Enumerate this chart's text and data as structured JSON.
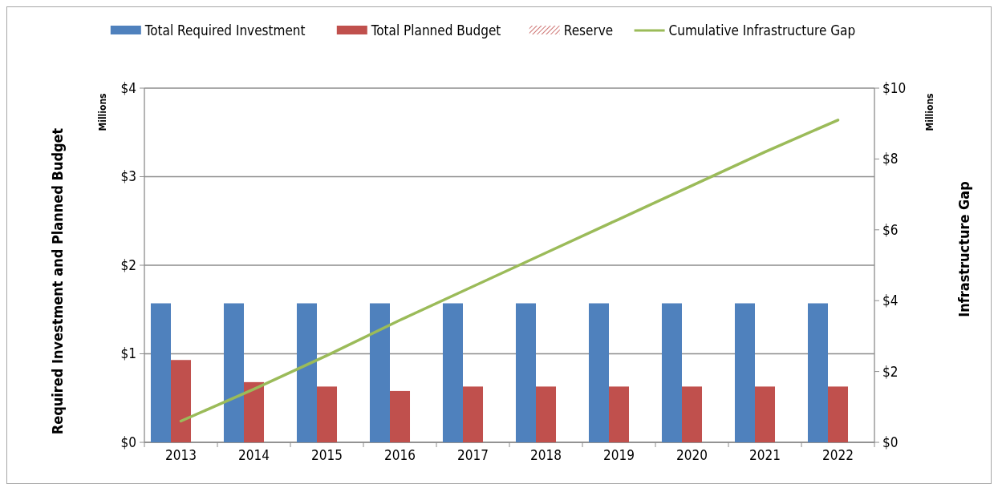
{
  "chart_data": {
    "type": "bar",
    "categories": [
      "2013",
      "2014",
      "2015",
      "2016",
      "2017",
      "2018",
      "2019",
      "2020",
      "2021",
      "2022"
    ],
    "series": [
      {
        "name": "Total Required Investment",
        "color": "#4f81bd",
        "values": [
          1.57,
          1.57,
          1.57,
          1.57,
          1.57,
          1.57,
          1.57,
          1.57,
          1.57,
          1.57
        ]
      },
      {
        "name": "Total Planned Budget",
        "color": "#c0504d",
        "values": [
          0.93,
          0.68,
          0.63,
          0.58,
          0.63,
          0.63,
          0.63,
          0.63,
          0.63,
          0.63
        ]
      },
      {
        "name": "Reserve",
        "color": "#c0504d",
        "values": [
          null,
          null,
          null,
          null,
          null,
          null,
          null,
          null,
          null,
          null
        ]
      },
      {
        "name": "Cumulative Infrastructure Gap",
        "type": "line",
        "axis": "y2",
        "color": "#9bbb59",
        "values": [
          0.6,
          1.5,
          2.45,
          3.45,
          4.4,
          5.35,
          6.3,
          7.25,
          8.2,
          9.1
        ]
      }
    ],
    "ylabel": "Required Investment and Planned Budget",
    "y2label": "Infrastructure Gap",
    "annotations": [
      "Millions",
      "Millions"
    ],
    "ylim": [
      0,
      4
    ],
    "yticks": [
      {
        "value": 0,
        "label": "$0"
      },
      {
        "value": 1,
        "label": "$1"
      },
      {
        "value": 2,
        "label": "$2"
      },
      {
        "value": 3,
        "label": "$3"
      },
      {
        "value": 4,
        "label": "$4"
      }
    ],
    "y2lim": [
      0,
      10
    ],
    "y2ticks": [
      {
        "value": 0,
        "label": "$0"
      },
      {
        "value": 2,
        "label": "$2"
      },
      {
        "value": 4,
        "label": "$4"
      },
      {
        "value": 6,
        "label": "$6"
      },
      {
        "value": 8,
        "label": "$8"
      },
      {
        "value": 10,
        "label": "$10"
      }
    ],
    "grid": "y",
    "legend": "top"
  }
}
